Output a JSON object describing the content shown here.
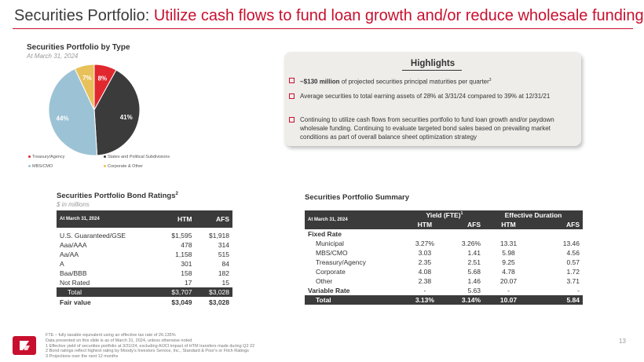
{
  "title": {
    "part1": "Securities Portfolio: ",
    "part2": "Utilize cash flows to fund loan growth and/or reduce wholesale funding"
  },
  "pie": {
    "title": "Securities Portfolio by Type",
    "subtitle": "At March 31, 2024",
    "labels": [
      "8%",
      "41%",
      "44%",
      "7%"
    ]
  },
  "chart_data": {
    "type": "pie",
    "title": "Securities Portfolio by Type",
    "subtitle": "At March 31, 2024",
    "slices": [
      {
        "name": "Treasury/Agency",
        "value": 8,
        "color": "#e0282e"
      },
      {
        "name": "States and Political Subdivisions",
        "value": 41,
        "color": "#3b3b3b"
      },
      {
        "name": "MBS/CMO",
        "value": 44,
        "color": "#9cc3d5"
      },
      {
        "name": "Corporate & Other",
        "value": 7,
        "color": "#e8c15a"
      }
    ],
    "legend_placement": "bottom"
  },
  "legend": [
    {
      "label": "Treasury/Agency",
      "color": "#e0282e"
    },
    {
      "label": "States and Political Subdivisions",
      "color": "#3b3b3b"
    },
    {
      "label": "MBS/CMO",
      "color": "#9cc3d5"
    },
    {
      "label": "Corporate & Other",
      "color": "#e8c15a"
    }
  ],
  "highlights": {
    "title": "Highlights",
    "b1_bold": "~$130 million",
    "b1_rest": " of projected securities principal maturities per quarter",
    "b1_sup": "3",
    "b2": "Average securities to total earning assets of 28% at 3/31/24 compared to 39% at 12/31/21",
    "b3": "Continuing to utilize cash flows from securities portfolio to fund loan growth and/or paydown wholesale funding. Continuing to evaluate targeted bond sales based on prevailing market conditions as part of overall balance sheet optimization strategy"
  },
  "ratings": {
    "title": "Securities Portfolio Bond Ratings",
    "title_sup": "2",
    "subtitle": "$ in millions",
    "header": {
      "date": "At March 31, 2024",
      "htm": "HTM",
      "afs": "AFS"
    },
    "rows": [
      {
        "label": "U.S. Guaranteed/GSE",
        "htm": "$1,595",
        "afs": "$1,918"
      },
      {
        "label": "Aaa/AAA",
        "htm": "478",
        "afs": "314"
      },
      {
        "label": "Aa/AA",
        "htm": "1,158",
        "afs": "515"
      },
      {
        "label": "A",
        "htm": "301",
        "afs": "84"
      },
      {
        "label": "Baa/BBB",
        "htm": "158",
        "afs": "182"
      },
      {
        "label": "Not Rated",
        "htm": "17",
        "afs": "15"
      }
    ],
    "total": {
      "label": "Total",
      "htm": "$3,707",
      "afs": "$3,028"
    },
    "fair": {
      "label": "Fair value",
      "htm": "$3,049",
      "afs": "$3,028"
    }
  },
  "summary": {
    "title": "Securities Portfolio Summary",
    "header": {
      "date": "At March 31, 2024",
      "yield": "Yield (FTE)",
      "yield_sup": "1",
      "duration": "Effective Duration",
      "htm": "HTM",
      "afs": "AFS"
    },
    "fixed_label": "Fixed Rate",
    "rows": [
      {
        "label": "Municipal",
        "y_htm": "3.27%",
        "y_afs": "3.26%",
        "d_htm": "13.31",
        "d_afs": "13.46"
      },
      {
        "label": "MBS/CMO",
        "y_htm": "3.03",
        "y_afs": "1.41",
        "d_htm": "5.98",
        "d_afs": "4.56"
      },
      {
        "label": "Treasury/Agency",
        "y_htm": "2.35",
        "y_afs": "2.51",
        "d_htm": "9.25",
        "d_afs": "0.57"
      },
      {
        "label": "Corporate",
        "y_htm": "4.08",
        "y_afs": "5.68",
        "d_htm": "4.78",
        "d_afs": "1.72"
      },
      {
        "label": "Other",
        "y_htm": "2.38",
        "y_afs": "1.46",
        "d_htm": "20.07",
        "d_afs": "3.71"
      }
    ],
    "variable": {
      "label": "Variable Rate",
      "y_htm": "-",
      "y_afs": "5.63",
      "d_htm": "-",
      "d_afs": "-"
    },
    "total": {
      "label": "Total",
      "y_htm": "3.13%",
      "y_afs": "3.14%",
      "d_htm": "10.07",
      "d_afs": "5.84"
    }
  },
  "footnotes": [
    "FTE – fully taxable equivalent using an effective tax rate of 26.135%",
    "Data presented on this slide is as of March 31, 2024, unless otherwise noted",
    "1  Effective yield of securities portfolio at 3/31/24, excluding AOCI impact of HTM transfers made during Q2 22",
    "2  Bond ratings reflect highest rating by Moody's Investors Service, Inc., Standard & Poor's or Fitch Ratings",
    "3  Projections over the next 12 months"
  ],
  "page_number": "13"
}
